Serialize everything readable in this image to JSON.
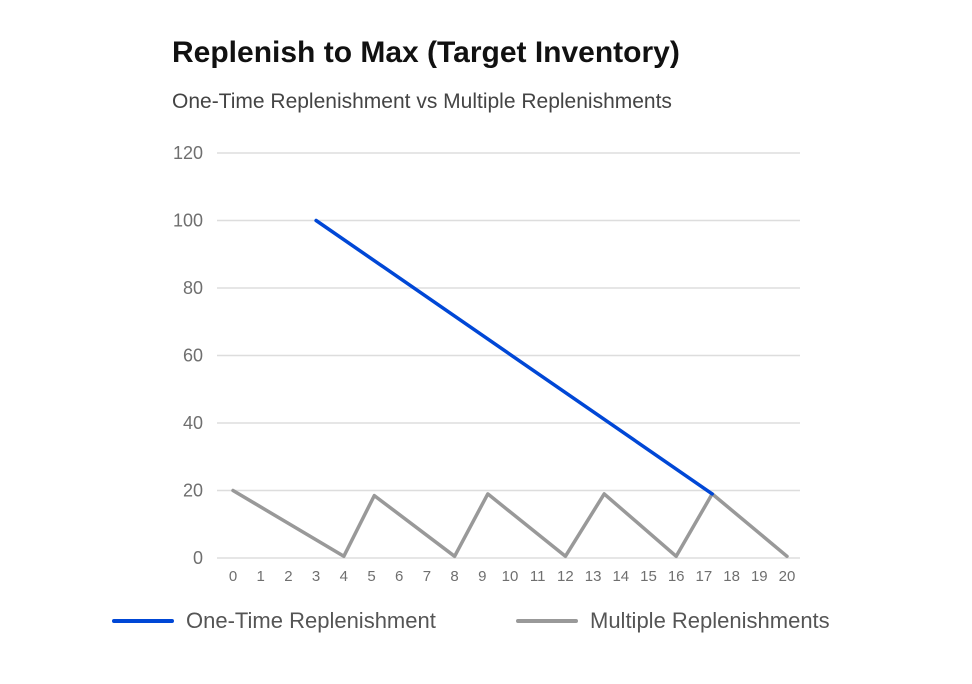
{
  "chart_data": {
    "type": "line",
    "title": "Replenish to Max (Target Inventory)",
    "subtitle": "One-Time Replenishment vs Multiple Replenishments",
    "xlabel": "",
    "ylabel": "",
    "x_ticks": [
      0,
      1,
      2,
      3,
      4,
      5,
      6,
      7,
      8,
      9,
      10,
      11,
      12,
      13,
      14,
      15,
      16,
      17,
      18,
      19,
      20
    ],
    "y_ticks": [
      0,
      20,
      40,
      60,
      80,
      100,
      120
    ],
    "xlim": [
      0,
      20
    ],
    "ylim": [
      0,
      120
    ],
    "grid": true,
    "legend_position": "bottom",
    "series": [
      {
        "name": "One-Time Replenishment",
        "color": "#0047d6",
        "x": [
          3,
          17.3
        ],
        "y": [
          100,
          19
        ]
      },
      {
        "name": "Multiple Replenishments",
        "color": "#999999",
        "x": [
          0,
          4,
          5.1,
          8,
          9.2,
          12,
          13.4,
          16,
          17.3,
          20
        ],
        "y": [
          20,
          0.5,
          18.5,
          0.5,
          19,
          0.5,
          19,
          0.5,
          19,
          0.5
        ]
      }
    ]
  }
}
